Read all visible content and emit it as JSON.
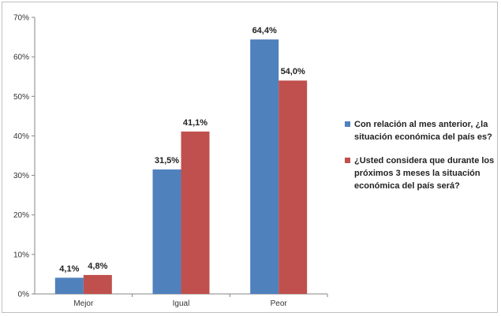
{
  "chart_data": {
    "type": "bar",
    "categories": [
      "Mejor",
      "Igual",
      "Peor"
    ],
    "series": [
      {
        "name": "Con relación al mes anterior, ¿la situación económica del país es?",
        "values": [
          4.1,
          31.5,
          64.4
        ],
        "labels": [
          "4,1%",
          "31,5%",
          "64,4%"
        ],
        "color": "#4f81bd"
      },
      {
        "name": "¿Usted considera que durante los próximos 3 meses la situación económica del país será?",
        "values": [
          4.8,
          41.1,
          54.0
        ],
        "labels": [
          "4,8%",
          "41,1%",
          "54,0%"
        ],
        "color": "#c0504d"
      }
    ],
    "ylim": [
      0,
      70
    ],
    "yticks": [
      "0%",
      "10%",
      "20%",
      "30%",
      "40%",
      "50%",
      "60%",
      "70%"
    ],
    "grid": false,
    "legend": "right"
  }
}
